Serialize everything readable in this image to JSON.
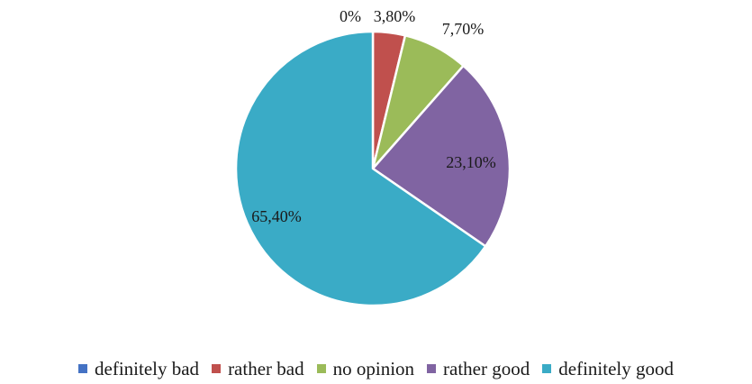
{
  "chart_data": {
    "type": "pie",
    "title": "",
    "categories": [
      "definitely bad",
      "rather bad",
      "no opinion",
      "rather good",
      "definitely good"
    ],
    "values": [
      0,
      3.8,
      7.7,
      23.1,
      65.4
    ],
    "value_labels": [
      "0%",
      "3,80%",
      "7,70%",
      "23,10%",
      "65,40%"
    ],
    "colors": [
      "#4472c4",
      "#c0504d",
      "#9bbb59",
      "#8064a2",
      "#3aabc6"
    ],
    "start_angle": "12 o'clock",
    "direction": "clockwise",
    "legend": {
      "position": "bottom",
      "entries": [
        "definitely bad",
        "rather bad",
        "no opinion",
        "rather good",
        "definitely good"
      ]
    }
  }
}
